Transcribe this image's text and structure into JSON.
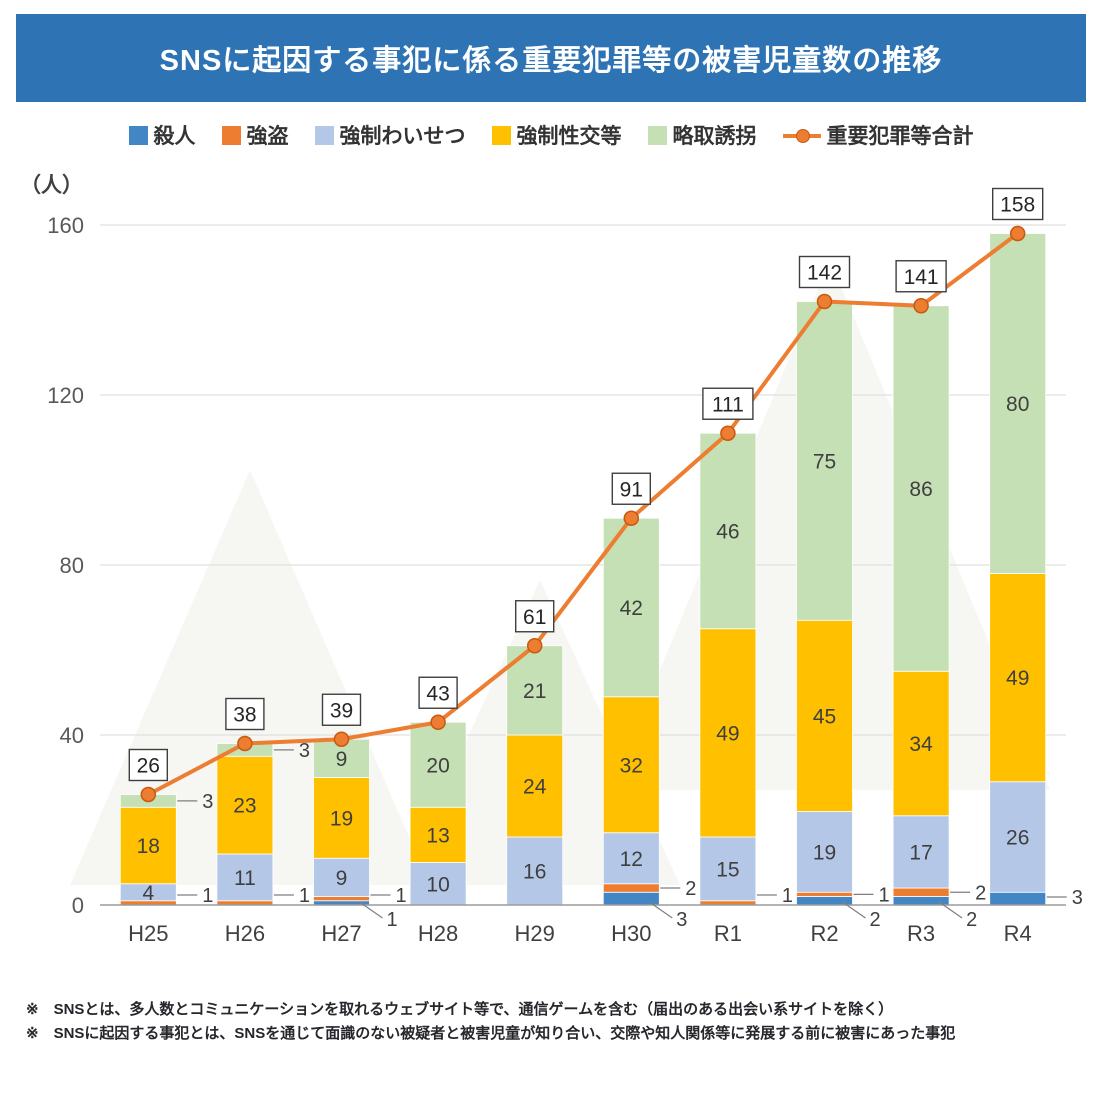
{
  "chart_data": {
    "type": "bar",
    "stacked": true,
    "title": "SNSに起因する事犯に係る重要犯罪等の被害児童数の推移",
    "ylabel_unit": "（人）",
    "ylim": [
      0,
      160
    ],
    "yticks": [
      0,
      40,
      80,
      120,
      160
    ],
    "grid": true,
    "legend_position": "top",
    "categories": [
      "H25",
      "H26",
      "H27",
      "H28",
      "H29",
      "H30",
      "R1",
      "R2",
      "R3",
      "R4"
    ],
    "series": [
      {
        "name": "殺人",
        "color": "#4386C6",
        "values": [
          0,
          0,
          1,
          0,
          0,
          3,
          0,
          2,
          2,
          3
        ]
      },
      {
        "name": "強盗",
        "color": "#ED7D31",
        "values": [
          1,
          1,
          1,
          0,
          0,
          2,
          1,
          1,
          2,
          0
        ]
      },
      {
        "name": "強制わいせつ",
        "color": "#B4C7E7",
        "values": [
          4,
          11,
          9,
          10,
          16,
          12,
          15,
          19,
          17,
          26
        ]
      },
      {
        "name": "強制性交等",
        "color": "#FFC000",
        "values": [
          18,
          23,
          19,
          13,
          24,
          32,
          49,
          45,
          34,
          49
        ]
      },
      {
        "name": "略取誘拐",
        "color": "#C5E0B4",
        "values": [
          3,
          3,
          9,
          20,
          21,
          42,
          46,
          75,
          86,
          80
        ]
      }
    ],
    "line_series": {
      "name": "重要犯罪等合計",
      "color": "#ED7D31",
      "marker_stroke": "#C55A11",
      "values": [
        26,
        38,
        39,
        43,
        61,
        91,
        111,
        142,
        141,
        158
      ]
    }
  },
  "footnotes": [
    "※　SNSとは、多人数とコミュニケーションを取れるウェブサイト等で、通信ゲームを含む（届出のある出会い系サイトを除く）",
    "※　SNSに起因する事犯とは、SNSを通じて面識のない被疑者と被害児童が知り合い、交際や知人関係等に発展する前に被害にあった事犯"
  ]
}
